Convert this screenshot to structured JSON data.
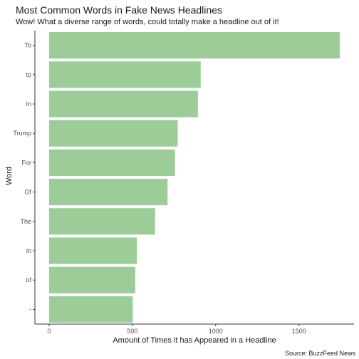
{
  "chart_data": {
    "type": "bar",
    "orientation": "horizontal",
    "title": "Most Common Words in Fake News Headlines",
    "subtitle": "Wow! What a diverse range of words, could totally make a headline out of it!",
    "caption": "Source: BuzzFeed News",
    "xlabel": "Amount of Times it has Appeared in a Headline",
    "ylabel": "Word",
    "categories": [
      "To",
      "to",
      "In",
      "Trump",
      "For",
      "Of",
      "The",
      "in",
      "of",
      "-"
    ],
    "values": [
      1745,
      910,
      893,
      772,
      755,
      711,
      636,
      527,
      517,
      502
    ],
    "xlim": [
      0,
      1745
    ],
    "xticks": [
      0,
      500,
      1000,
      1500
    ],
    "grid": false,
    "bar_color": "#9ccc98"
  }
}
